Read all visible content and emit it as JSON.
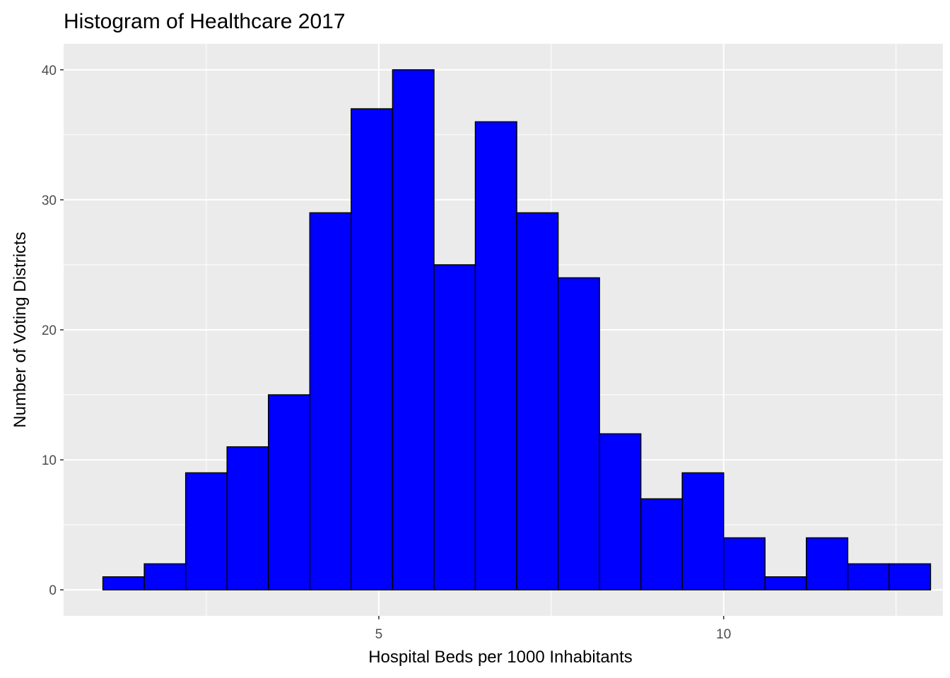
{
  "chart_data": {
    "type": "bar",
    "title": "Histogram of Healthcare 2017",
    "xlabel": "Hospital Beds per 1000 Inhabitants",
    "ylabel": "Number of Voting Districts",
    "bin_width": 0.6,
    "x_ticks": [
      5,
      10
    ],
    "y_ticks": [
      0,
      10,
      20,
      30,
      40
    ],
    "xlim": [
      0.43,
      13.18
    ],
    "ylim": [
      -2,
      42
    ],
    "grid": true,
    "colors": {
      "panel": "#ebebeb",
      "grid": "#ffffff",
      "bar_fill": "#0000ff",
      "bar_stroke": "#000000"
    },
    "bins": [
      {
        "x": 1.3,
        "count": 1
      },
      {
        "x": 1.9,
        "count": 2
      },
      {
        "x": 2.5,
        "count": 9
      },
      {
        "x": 3.1,
        "count": 11
      },
      {
        "x": 3.7,
        "count": 15
      },
      {
        "x": 4.3,
        "count": 29
      },
      {
        "x": 4.9,
        "count": 37
      },
      {
        "x": 5.5,
        "count": 40
      },
      {
        "x": 6.1,
        "count": 25
      },
      {
        "x": 6.7,
        "count": 36
      },
      {
        "x": 7.3,
        "count": 29
      },
      {
        "x": 7.9,
        "count": 24
      },
      {
        "x": 8.5,
        "count": 12
      },
      {
        "x": 9.1,
        "count": 7
      },
      {
        "x": 9.7,
        "count": 9
      },
      {
        "x": 10.3,
        "count": 4
      },
      {
        "x": 10.9,
        "count": 1
      },
      {
        "x": 11.5,
        "count": 4
      },
      {
        "x": 12.1,
        "count": 2
      },
      {
        "x": 12.7,
        "count": 2
      }
    ]
  }
}
